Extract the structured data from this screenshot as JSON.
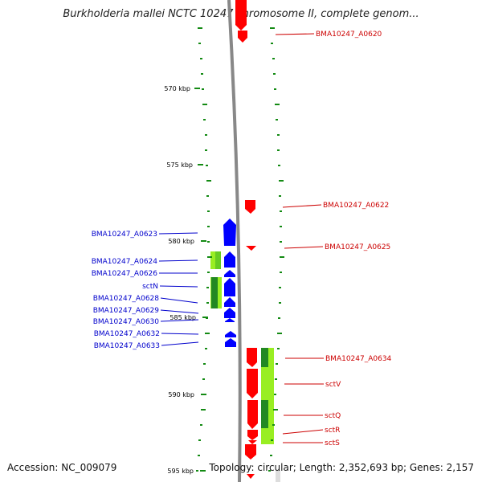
{
  "title": "Burkholderia mallei NCTC 10247 chromosome II, complete genom...",
  "accession": "Accession: NC_009079",
  "summary": "Topology: circular; Length: 2,352,693 bp; Genes: 2,157",
  "colors": {
    "forward": "#ff0000",
    "reverse": "#0000ff",
    "backbone": "#888888",
    "tick": "#138a13",
    "highlight_light": "#99ee22",
    "highlight_dark": "#228822",
    "ruler_text": "#000000"
  },
  "ruler": {
    "labels": [
      "570 kbp",
      "575 kbp",
      "580 kbp",
      "585 kbp",
      "590 kbp",
      "595 kbp"
    ]
  },
  "forward_labels": [
    "BMA10247_A0620",
    "BMA10247_A0622",
    "BMA10247_A0625",
    "BMA10247_A0634",
    "sctV",
    "sctQ",
    "sctR",
    "sctS"
  ],
  "reverse_labels": [
    "BMA10247_A0623",
    "BMA10247_A0624",
    "BMA10247_A0626",
    "sctN",
    "BMA10247_A0628",
    "BMA10247_A0629",
    "BMA10247_A0630",
    "BMA10247_A0632",
    "BMA10247_A0633"
  ]
}
